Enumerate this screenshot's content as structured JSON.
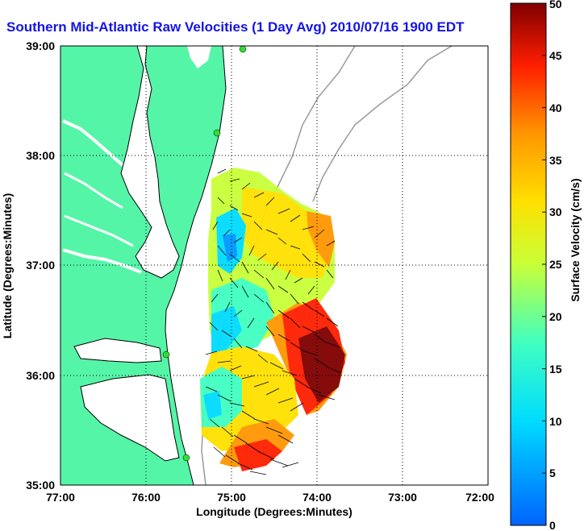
{
  "title": "Southern Mid-Atlantic Raw Velocities (1 Day Avg) 2010/07/16 1900 EDT",
  "axes": {
    "xlabel": "Longitude (Degrees:Minutes)",
    "ylabel": "Latitude (Degrees:Minutes)",
    "x_ticks": [
      "77:00",
      "76:00",
      "75:00",
      "74:00",
      "73:00",
      "72:00"
    ],
    "y_ticks": [
      "39:00",
      "38:00",
      "37:00",
      "36:00",
      "35:00"
    ]
  },
  "colorbar": {
    "label": "Surface Velocity (cm/s)",
    "ticks": [
      "50",
      "45",
      "40",
      "35",
      "30",
      "25",
      "20",
      "15",
      "10",
      "5",
      "0"
    ],
    "min": 0,
    "max": 50,
    "colormap": "jet"
  },
  "colors": {
    "title": "#1414e6",
    "land": "#55f5a8",
    "water": "#ffffff",
    "bathymetry": "#9a9a9a",
    "stations": "#33dd33"
  },
  "map": {
    "lon_range": [
      -77,
      -72
    ],
    "lat_range": [
      35,
      39
    ],
    "grid": "dotted"
  }
}
